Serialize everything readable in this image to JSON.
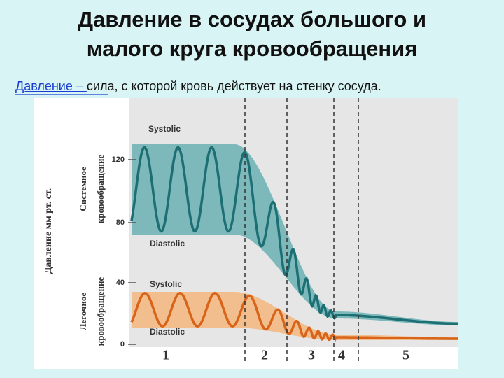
{
  "title": [
    "Давление в сосудах большого и",
    "малого круга кровообращения"
  ],
  "definition": {
    "term": "Давление – ",
    "text": "сила, с которой кровь действует на стенку сосуда."
  },
  "figure": {
    "y_axis_label": "Давление мм рт. ст.",
    "systemic": [
      "Системное",
      "кровообращение"
    ],
    "pulmonary": [
      "Легочное",
      "кровообращение"
    ],
    "ticks": [
      120,
      80,
      40,
      0
    ],
    "curve_labels": [
      "Systolic",
      "Diastolic",
      "Systolic",
      "Diastolic"
    ],
    "regions": [
      "1",
      "2",
      "3",
      "4",
      "5"
    ]
  }
}
